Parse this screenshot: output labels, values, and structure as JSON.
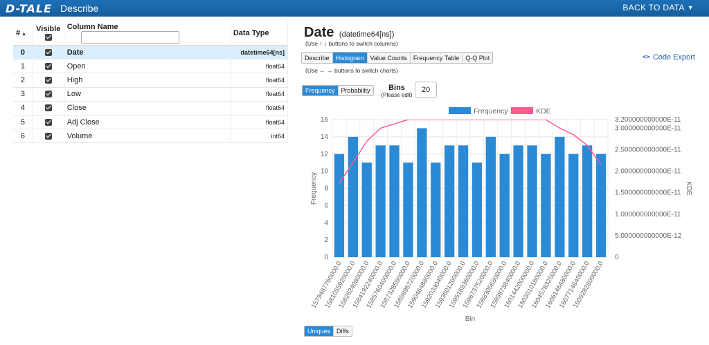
{
  "header": {
    "logo": "D-TALE",
    "title": "Describe",
    "back_link": "BACK TO DATA",
    "back_caret": "▼"
  },
  "columns_table": {
    "headers": {
      "index": "#",
      "visible": "Visible",
      "name": "Column Name",
      "type": "Data Type"
    },
    "filter_value": "",
    "rows": [
      {
        "index": "0",
        "name": "Date",
        "type": "datetime64[ns]",
        "selected": true
      },
      {
        "index": "1",
        "name": "Open",
        "type": "float64",
        "selected": false
      },
      {
        "index": "2",
        "name": "High",
        "type": "float64",
        "selected": false
      },
      {
        "index": "3",
        "name": "Low",
        "type": "float64",
        "selected": false
      },
      {
        "index": "4",
        "name": "Close",
        "type": "float64",
        "selected": false
      },
      {
        "index": "5",
        "name": "Adj Close",
        "type": "float64",
        "selected": false
      },
      {
        "index": "6",
        "name": "Volume",
        "type": "int64",
        "selected": false
      }
    ]
  },
  "detail": {
    "title": "Date",
    "dtype": "(datetime64[ns])",
    "hint_columns": "(Use ↑ ↓ buttons to switch columns)",
    "hint_charts": "(Use ← → buttons to switch charts)",
    "tabs": [
      "Describe",
      "Histogram",
      "Value Counts",
      "Frequency Table",
      "Q-Q Plot"
    ],
    "active_tab": 1,
    "code_export": "Code Export",
    "code_export_glyph": "<>",
    "modes": [
      "Frequency",
      "Probability"
    ],
    "active_mode": 0,
    "bins_label": "Bins",
    "bins_sublabel": "(Please edit)",
    "bins_value": "20",
    "bottom_toggle": [
      "Uniques",
      "Diffs"
    ],
    "active_bottom": 0
  },
  "chart_data": {
    "type": "bar",
    "legend": [
      {
        "name": "Frequency",
        "color": "#2b8ad6",
        "shape": "bar"
      },
      {
        "name": "KDE",
        "color": "#ff5c8a",
        "shape": "line"
      }
    ],
    "legend_position": "top-center",
    "xlabel": "Bin",
    "ylabel": "Frequency",
    "y2label": "KDE",
    "ylim": [
      0,
      16
    ],
    "yticks": [
      "0",
      "2",
      "4",
      "6",
      "8",
      "10",
      "12",
      "14",
      "16"
    ],
    "y2ticks": [
      "0",
      "5.000000000000E-12",
      "1.000000000000E-11",
      "1.500000000000E-11",
      "2.000000000000E-11",
      "2.500000000000E-11",
      "3.000000000000E-11",
      "3.200000000000E-11"
    ],
    "y2tick_values": [
      0,
      5e-12,
      1e-11,
      1.5e-11,
      2e-11,
      2.5e-11,
      3e-11,
      3.2e-11
    ],
    "y2lim": [
      0,
      3.2e-11
    ],
    "categories": [
      "1579487760000.0",
      "1581055920000.0",
      "1582624080000.0",
      "1584192240000.0",
      "1585760400000.0",
      "1587328560000.0",
      "1588896720000.0",
      "1590464880000.0",
      "1592033040000.0",
      "1593601200000.0",
      "1595169360000.0",
      "1596737520000.0",
      "1598305680000.0",
      "1599873840000.0",
      "1601442000000.0",
      "1603010160000.0",
      "1604578320000.0",
      "1606146480000.0",
      "1607714640000.0",
      "1609282800000.0"
    ],
    "series": [
      {
        "name": "Frequency",
        "values": [
          12,
          14,
          11,
          13,
          13,
          11,
          15,
          11,
          13,
          13,
          11,
          14,
          12,
          13,
          13,
          12,
          14,
          12,
          13,
          12
        ]
      },
      {
        "name": "KDE",
        "values": [
          1.72e-11,
          2.2e-11,
          2.7e-11,
          3e-11,
          3.1e-11,
          3.2e-11,
          3.2e-11,
          3.2e-11,
          3.2e-11,
          3.2e-11,
          3.2e-11,
          3.2e-11,
          3.2e-11,
          3.2e-11,
          3.2e-11,
          3.2e-11,
          3e-11,
          2.85e-11,
          2.6e-11,
          2.15e-11
        ]
      }
    ],
    "grid": true,
    "colors": {
      "bar": "#2b8ad6",
      "kde": "#ff5c8a"
    }
  }
}
